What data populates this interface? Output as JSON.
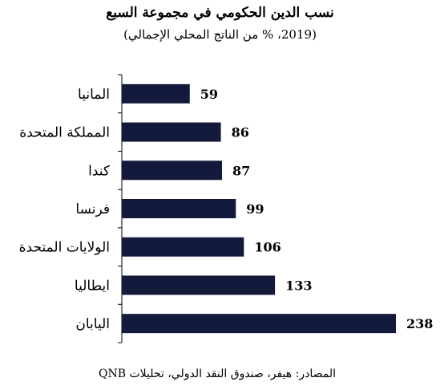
{
  "chart_data": {
    "type": "bar",
    "orientation": "horizontal",
    "title": "نسب الدين الحكومي في مجموعة السبع",
    "subtitle": "(2019، % من الناتج المحلي الإجمالي)",
    "categories": [
      "المانيا",
      "المملكة المتحدة",
      "كندا",
      "فرنسا",
      "الولايات المتحدة",
      "ايطاليا",
      "اليابان"
    ],
    "values": [
      59,
      86,
      87,
      99,
      106,
      133,
      238
    ],
    "xlim": [
      0,
      238
    ],
    "bar_color": "#141a3b",
    "grid": false,
    "legend": "none"
  },
  "source": "المصادر: هيفر، صندوق النقد الدولي، تحليلات QNB"
}
